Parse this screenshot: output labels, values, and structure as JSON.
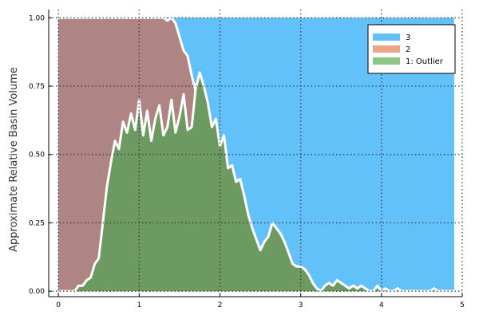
{
  "chart_data": {
    "type": "area",
    "title": "",
    "xlabel": "",
    "ylabel": "Approximate Relative Basin Volume",
    "xlim": [
      -0.12,
      5.0
    ],
    "ylim": [
      -0.02,
      1.03
    ],
    "x_ticks": [
      "0",
      "1",
      "2",
      "3",
      "4",
      "5"
    ],
    "y_ticks": [
      "0.00",
      "0.25",
      "0.50",
      "0.75",
      "1.00"
    ],
    "grid": true,
    "legend_position": "top-right",
    "legend": [
      "3",
      "2",
      "1: Outlier"
    ],
    "colors": {
      "s3": "#63c1fa",
      "s2": "#ae8582",
      "s1": "#6c9a60",
      "outline": "#ffffff",
      "legend2": "#eaa587",
      "legend1": "#8bc783"
    },
    "series": [
      {
        "name": "1: Outlier",
        "cumulative": true,
        "x": [
          0.0,
          0.05,
          0.1,
          0.15,
          0.2,
          0.25,
          0.3,
          0.35,
          0.4,
          0.45,
          0.5,
          0.55,
          0.6,
          0.65,
          0.7,
          0.75,
          0.8,
          0.85,
          0.9,
          0.95,
          1.0,
          1.05,
          1.1,
          1.15,
          1.2,
          1.25,
          1.3,
          1.35,
          1.4,
          1.45,
          1.5,
          1.55,
          1.6,
          1.65,
          1.7,
          1.75,
          1.8,
          1.85,
          1.9,
          1.95,
          2.0,
          2.05,
          2.1,
          2.15,
          2.2,
          2.25,
          2.3,
          2.35,
          2.4,
          2.45,
          2.5,
          2.55,
          2.6,
          2.65,
          2.7,
          2.75,
          2.8,
          2.85,
          2.9,
          2.95,
          3.0,
          3.05,
          3.1,
          3.15,
          3.2,
          3.25,
          3.3,
          3.35,
          3.4,
          3.45,
          3.5,
          3.55,
          3.6,
          3.65,
          3.7,
          3.75,
          3.8,
          3.85,
          3.9,
          3.95,
          4.0,
          4.05,
          4.1,
          4.15,
          4.2,
          4.25,
          4.3,
          4.35,
          4.4,
          4.45,
          4.5,
          4.55,
          4.6,
          4.65,
          4.7,
          4.75,
          4.8,
          4.85,
          4.9
        ],
        "y": [
          0.0,
          0.0,
          0.0,
          0.0,
          0.0,
          0.02,
          0.02,
          0.04,
          0.05,
          0.1,
          0.12,
          0.25,
          0.38,
          0.47,
          0.55,
          0.52,
          0.62,
          0.58,
          0.65,
          0.59,
          0.7,
          0.57,
          0.66,
          0.55,
          0.63,
          0.68,
          0.57,
          0.6,
          0.7,
          0.58,
          0.64,
          0.72,
          0.59,
          0.6,
          0.74,
          0.8,
          0.75,
          0.69,
          0.6,
          0.63,
          0.53,
          0.57,
          0.45,
          0.46,
          0.4,
          0.41,
          0.35,
          0.28,
          0.23,
          0.19,
          0.15,
          0.18,
          0.2,
          0.25,
          0.23,
          0.21,
          0.18,
          0.14,
          0.1,
          0.09,
          0.09,
          0.08,
          0.06,
          0.03,
          0.01,
          0.0,
          0.02,
          0.03,
          0.02,
          0.04,
          0.03,
          0.02,
          0.01,
          0.02,
          0.01,
          0.02,
          0.01,
          0.0,
          0.0,
          0.02,
          0.0,
          0.01,
          0.0,
          0.0,
          0.01,
          0.0,
          0.0,
          0.0,
          0.0,
          0.0,
          0.0,
          0.0,
          0.0,
          0.01,
          0.0,
          0.0,
          0.0,
          0.0,
          0.0
        ]
      },
      {
        "name": "2",
        "cumulative": true,
        "x": [
          0.0,
          0.05,
          0.1,
          0.15,
          0.2,
          0.25,
          0.3,
          0.35,
          0.4,
          0.45,
          0.5,
          0.55,
          0.6,
          0.65,
          0.7,
          0.75,
          0.8,
          0.85,
          0.9,
          0.95,
          1.0,
          1.05,
          1.1,
          1.15,
          1.2,
          1.25,
          1.3,
          1.35,
          1.4,
          1.45,
          1.5,
          1.55,
          1.6,
          1.65,
          1.7,
          1.75,
          1.8,
          1.85,
          1.9,
          1.95,
          2.0,
          2.05,
          2.1,
          2.15,
          2.2,
          2.25,
          2.3,
          2.35,
          2.4,
          2.45,
          2.5,
          2.55,
          2.6,
          2.65,
          2.7,
          2.75,
          2.8,
          2.85,
          2.9,
          2.95,
          3.0,
          3.05,
          3.1,
          3.15,
          3.2,
          3.25,
          3.3,
          3.35,
          3.4,
          3.45,
          3.5,
          3.55,
          3.6,
          3.65,
          3.7,
          3.75,
          3.8,
          3.85,
          3.9,
          3.95,
          4.0,
          4.05,
          4.1,
          4.15,
          4.2,
          4.25,
          4.3,
          4.35,
          4.4,
          4.45,
          4.5,
          4.55,
          4.6,
          4.65,
          4.7,
          4.75,
          4.8,
          4.85,
          4.9
        ],
        "y": [
          1.0,
          1.0,
          1.0,
          1.0,
          1.0,
          1.0,
          1.0,
          1.0,
          1.0,
          1.0,
          1.0,
          1.0,
          1.0,
          1.0,
          1.0,
          1.0,
          1.0,
          1.0,
          1.0,
          1.0,
          1.0,
          1.0,
          1.0,
          1.0,
          1.0,
          1.0,
          1.0,
          0.99,
          1.0,
          0.98,
          0.93,
          0.88,
          0.86,
          0.79,
          0.73,
          0.75,
          0.64,
          0.57,
          0.6,
          0.52,
          0.47,
          0.56,
          0.45,
          0.46,
          0.4,
          0.41,
          0.35,
          0.28,
          0.23,
          0.19,
          0.15,
          0.18,
          0.2,
          0.25,
          0.23,
          0.21,
          0.18,
          0.14,
          0.1,
          0.09,
          0.09,
          0.08,
          0.06,
          0.03,
          0.01,
          0.0,
          0.02,
          0.03,
          0.02,
          0.04,
          0.03,
          0.02,
          0.01,
          0.02,
          0.01,
          0.02,
          0.01,
          0.0,
          0.0,
          0.02,
          0.0,
          0.01,
          0.0,
          0.0,
          0.01,
          0.0,
          0.0,
          0.0,
          0.0,
          0.0,
          0.0,
          0.0,
          0.0,
          0.01,
          0.0,
          0.0,
          0.0,
          0.0,
          0.0
        ]
      },
      {
        "name": "3",
        "cumulative": true,
        "x": [
          0.0,
          4.9
        ],
        "y": [
          1.0,
          1.0
        ]
      }
    ]
  }
}
